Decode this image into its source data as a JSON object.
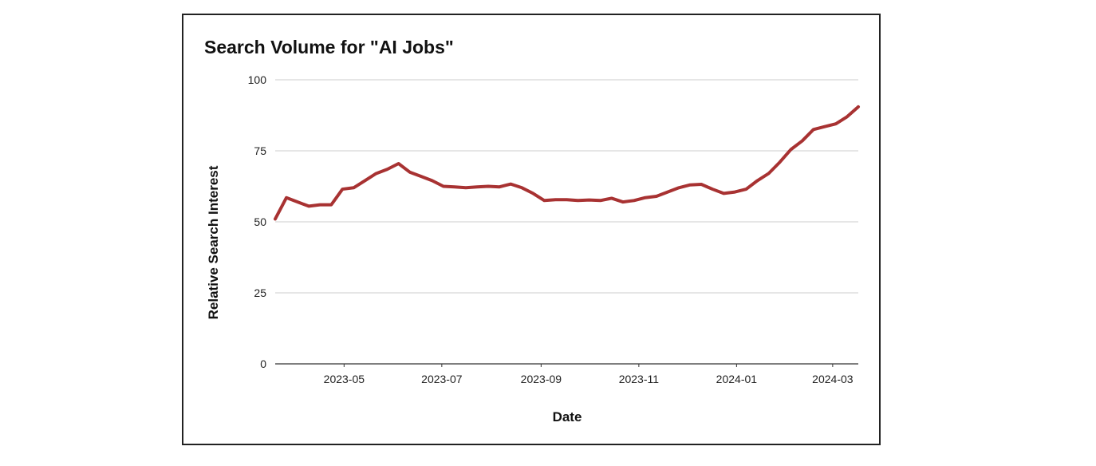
{
  "chart_data": {
    "type": "line",
    "title": "Search Volume for \"AI Jobs\"",
    "xlabel": "Date",
    "ylabel": "Relative Search Interest",
    "ylim": [
      0,
      100
    ],
    "xlim": [
      "2023-03-19",
      "2024-03-17"
    ],
    "y_ticks": [
      0,
      25,
      50,
      75,
      100
    ],
    "x_ticks": [
      "2023-05",
      "2023-07",
      "2023-09",
      "2023-11",
      "2024-01",
      "2024-03"
    ],
    "x_tick_dates": [
      "2023-05-01",
      "2023-07-01",
      "2023-09-01",
      "2023-11-01",
      "2024-01-01",
      "2024-03-01"
    ],
    "grid": true,
    "line_color": "#a83232",
    "series": [
      {
        "x": [
          "2023-03-19",
          "2023-03-26",
          "2023-04-02",
          "2023-04-09",
          "2023-04-16",
          "2023-04-23",
          "2023-04-30",
          "2023-05-07",
          "2023-05-14",
          "2023-05-21",
          "2023-05-28",
          "2023-06-04",
          "2023-06-11",
          "2023-06-18",
          "2023-06-25",
          "2023-07-02",
          "2023-07-09",
          "2023-07-16",
          "2023-07-23",
          "2023-07-30",
          "2023-08-06",
          "2023-08-13",
          "2023-08-20",
          "2023-08-27",
          "2023-09-03",
          "2023-09-10",
          "2023-09-17",
          "2023-09-24",
          "2023-10-01",
          "2023-10-08",
          "2023-10-15",
          "2023-10-22",
          "2023-10-29",
          "2023-11-05",
          "2023-11-12",
          "2023-11-19",
          "2023-11-26",
          "2023-12-03",
          "2023-12-10",
          "2023-12-17",
          "2023-12-24",
          "2023-12-31",
          "2024-01-07",
          "2024-01-14",
          "2024-01-21",
          "2024-01-28",
          "2024-02-04",
          "2024-02-11",
          "2024-02-18",
          "2024-02-25",
          "2024-03-03",
          "2024-03-10",
          "2024-03-17"
        ],
        "y": [
          51,
          58.5,
          57,
          55.5,
          56,
          56,
          61.5,
          62,
          64.5,
          67,
          68.5,
          70.5,
          67.5,
          66,
          64.5,
          62.5,
          62.3,
          62,
          62.3,
          62.5,
          62.3,
          63.3,
          62,
          60,
          57.5,
          57.8,
          57.8,
          57.5,
          57.7,
          57.5,
          58.3,
          57,
          57.5,
          58.5,
          59,
          60.5,
          62,
          63,
          63.2,
          61.5,
          60,
          60.5,
          61.5,
          64.5,
          67,
          71,
          75.5,
          78.5,
          82.5,
          83.5,
          84.5,
          87,
          90.5
        ]
      }
    ]
  }
}
